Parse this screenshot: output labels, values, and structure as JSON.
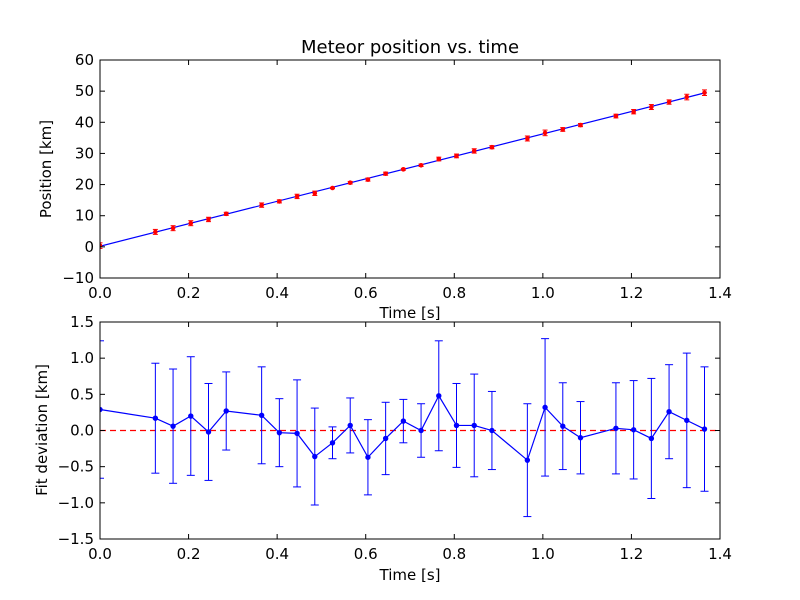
{
  "title": "Meteor position vs. time",
  "colors": {
    "line": "#0000ff",
    "points": "#ff0000",
    "errorbar_top": "#ff0000",
    "errorbar_bottom": "#0000ff",
    "zero_line": "#ff0000"
  },
  "chart_data": [
    {
      "type": "line",
      "title": "Meteor position vs. time",
      "xlabel": "Time [s]",
      "ylabel": "Position [km]",
      "xlim": [
        0,
        1.4
      ],
      "ylim": [
        -10,
        60
      ],
      "xticks": [
        0.0,
        0.2,
        0.4,
        0.6,
        0.8,
        1.0,
        1.2,
        1.4
      ],
      "xtick_labels": [
        "0.0",
        "0.2",
        "0.4",
        "0.6",
        "0.8",
        "1.0",
        "1.2",
        "1.4"
      ],
      "yticks": [
        -10,
        0,
        10,
        20,
        30,
        40,
        50,
        60
      ],
      "ytick_labels": [
        "−10",
        "0",
        "10",
        "20",
        "30",
        "40",
        "50",
        "60"
      ],
      "grid": false,
      "series": [
        {
          "kind": "fit-line",
          "x": [
            0.0,
            1.37
          ],
          "y": [
            0.2,
            49.6
          ]
        },
        {
          "kind": "points-with-errorbars",
          "x": [
            0.0,
            0.125,
            0.165,
            0.205,
            0.245,
            0.285,
            0.365,
            0.405,
            0.445,
            0.485,
            0.525,
            0.565,
            0.605,
            0.645,
            0.685,
            0.725,
            0.765,
            0.805,
            0.845,
            0.885,
            0.965,
            1.005,
            1.045,
            1.085,
            1.165,
            1.205,
            1.245,
            1.285,
            1.325,
            1.365
          ],
          "y": [
            0.4,
            4.8,
            6.0,
            7.6,
            8.8,
            10.6,
            13.4,
            14.6,
            16.2,
            17.2,
            18.9,
            20.6,
            21.6,
            23.5,
            24.9,
            26.2,
            28.2,
            29.2,
            30.8,
            32.0,
            34.8,
            36.6,
            37.7,
            39.1,
            42.0,
            43.4,
            44.9,
            46.5,
            48.1,
            49.5
          ],
          "yerr": [
            0.9,
            0.8,
            0.8,
            0.8,
            0.7,
            0.5,
            0.7,
            0.5,
            0.7,
            0.7,
            0.2,
            0.4,
            0.5,
            0.5,
            0.3,
            0.4,
            0.6,
            0.6,
            0.7,
            0.5,
            0.8,
            0.9,
            0.6,
            0.5,
            0.6,
            0.7,
            0.8,
            0.7,
            0.9,
            0.9
          ]
        }
      ]
    },
    {
      "type": "line",
      "xlabel": "Time [s]",
      "ylabel": "Fit deviation [km]",
      "xlim": [
        0,
        1.4
      ],
      "ylim": [
        -1.5,
        1.5
      ],
      "xticks": [
        0.0,
        0.2,
        0.4,
        0.6,
        0.8,
        1.0,
        1.2,
        1.4
      ],
      "xtick_labels": [
        "0.0",
        "0.2",
        "0.4",
        "0.6",
        "0.8",
        "1.0",
        "1.2",
        "1.4"
      ],
      "yticks": [
        -1.5,
        -1.0,
        -0.5,
        0.0,
        0.5,
        1.0,
        1.5
      ],
      "ytick_labels": [
        "−1.5",
        "−1.0",
        "−0.5",
        "0.0",
        "0.5",
        "1.0",
        "1.5"
      ],
      "grid": false,
      "reference_line": {
        "y": 0.0,
        "style": "dashed"
      },
      "series": [
        {
          "kind": "points-with-errorbars",
          "x": [
            0.0,
            0.125,
            0.165,
            0.205,
            0.245,
            0.285,
            0.365,
            0.405,
            0.445,
            0.485,
            0.525,
            0.565,
            0.605,
            0.645,
            0.685,
            0.725,
            0.765,
            0.805,
            0.845,
            0.885,
            0.965,
            1.005,
            1.045,
            1.085,
            1.165,
            1.205,
            1.245,
            1.285,
            1.325,
            1.365
          ],
          "y": [
            0.29,
            0.17,
            0.06,
            0.2,
            -0.02,
            0.27,
            0.21,
            -0.03,
            -0.04,
            -0.36,
            -0.17,
            0.07,
            -0.37,
            -0.11,
            0.13,
            0.0,
            0.48,
            0.07,
            0.07,
            0.0,
            -0.41,
            0.32,
            0.06,
            -0.1,
            0.03,
            0.01,
            -0.11,
            0.26,
            0.14,
            0.02
          ],
          "yerr": [
            0.95,
            0.76,
            0.79,
            0.82,
            0.67,
            0.54,
            0.67,
            0.47,
            0.74,
            0.67,
            0.22,
            0.38,
            0.52,
            0.5,
            0.3,
            0.37,
            0.76,
            0.58,
            0.71,
            0.54,
            0.78,
            0.95,
            0.6,
            0.5,
            0.63,
            0.68,
            0.83,
            0.65,
            0.93,
            0.86
          ]
        }
      ]
    }
  ]
}
